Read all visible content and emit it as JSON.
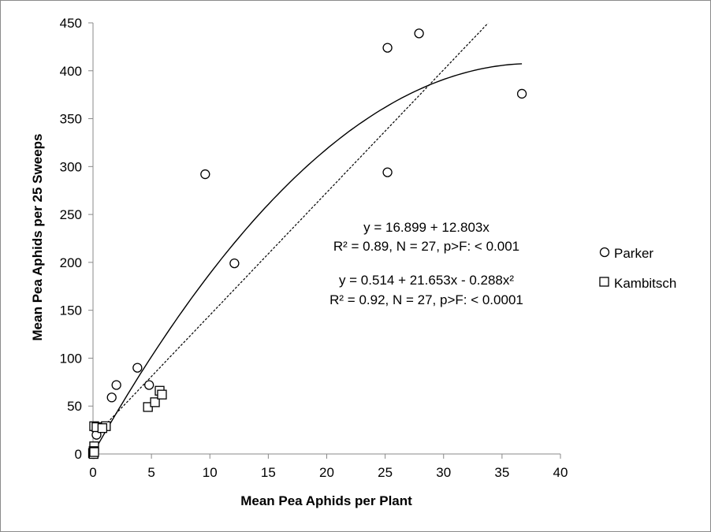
{
  "chart_data": {
    "type": "scatter",
    "title": "",
    "xlabel": "Mean  Pea Aphids per Plant",
    "ylabel": "Mean Pea Aphids per 25 Sweeps",
    "xlim": [
      0,
      40
    ],
    "ylim": [
      0,
      450
    ],
    "xticks": [
      0,
      5,
      10,
      15,
      20,
      25,
      30,
      35,
      40
    ],
    "yticks": [
      0,
      50,
      100,
      150,
      200,
      250,
      300,
      350,
      400,
      450
    ],
    "grid": false,
    "legend": "right",
    "series": [
      {
        "name": "Parker",
        "marker": "circle",
        "points": [
          [
            9.6,
            292
          ],
          [
            12.1,
            199
          ],
          [
            25.2,
            424
          ],
          [
            27.9,
            439
          ],
          [
            25.2,
            294
          ],
          [
            36.7,
            376
          ],
          [
            3.8,
            90
          ],
          [
            2.0,
            72
          ],
          [
            1.6,
            59
          ],
          [
            4.8,
            72
          ],
          [
            0.3,
            20
          ],
          [
            0.3,
            28
          ],
          [
            0.1,
            2
          ],
          [
            0.05,
            0
          ]
        ]
      },
      {
        "name": "Kambitsch",
        "marker": "square",
        "points": [
          [
            4.7,
            49
          ],
          [
            5.3,
            54
          ],
          [
            5.7,
            66
          ],
          [
            5.9,
            62
          ],
          [
            1.1,
            29
          ],
          [
            0.1,
            29
          ],
          [
            0.3,
            28
          ],
          [
            0.8,
            27
          ],
          [
            0.1,
            8
          ],
          [
            0.05,
            3
          ],
          [
            0.0,
            1
          ],
          [
            0.05,
            0
          ],
          [
            0.1,
            2
          ]
        ]
      }
    ],
    "fits": [
      {
        "style": "dashed",
        "equation": "y = 16.899 + 12.803x",
        "stats": "R² = 0.89, N = 27, p>F: < 0.001",
        "coef": [
          16.899,
          12.803,
          0
        ],
        "xrange": [
          0.3,
          33.8
        ]
      },
      {
        "style": "solid",
        "equation": "y =  0.514 + 21.653x - 0.288x²",
        "stats": "R² = 0.92, N = 27, p>F: < 0.0001",
        "coef": [
          0.514,
          21.653,
          -0.288
        ],
        "xrange": [
          0.0,
          36.7
        ]
      }
    ]
  }
}
